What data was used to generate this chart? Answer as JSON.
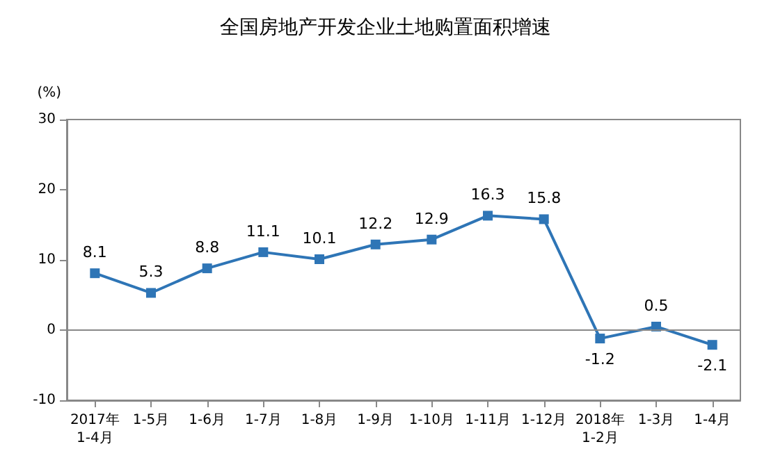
{
  "chart_data": {
    "type": "line",
    "title": "全国房地产开发企业土地购置面积增速",
    "ylabel": "(%)",
    "categories": [
      "2017年\n1-4月",
      "1-5月",
      "1-6月",
      "1-7月",
      "1-8月",
      "1-9月",
      "1-10月",
      "1-11月",
      "1-12月",
      "2018年\n1-2月",
      "1-3月",
      "1-4月"
    ],
    "series": [
      {
        "color": "#2e75b6",
        "values": [
          8.1,
          5.3,
          8.8,
          11.1,
          10.1,
          12.2,
          12.9,
          16.3,
          15.8,
          -1.2,
          0.5,
          -2.1
        ]
      }
    ],
    "ylim": [
      -10,
      30
    ],
    "yticks": [
      -10,
      0,
      10,
      20,
      30
    ],
    "ref_lines": [
      {
        "axis": "y",
        "value": 0
      }
    ],
    "marker": "square",
    "line_style": "solid",
    "data_labels": true
  }
}
